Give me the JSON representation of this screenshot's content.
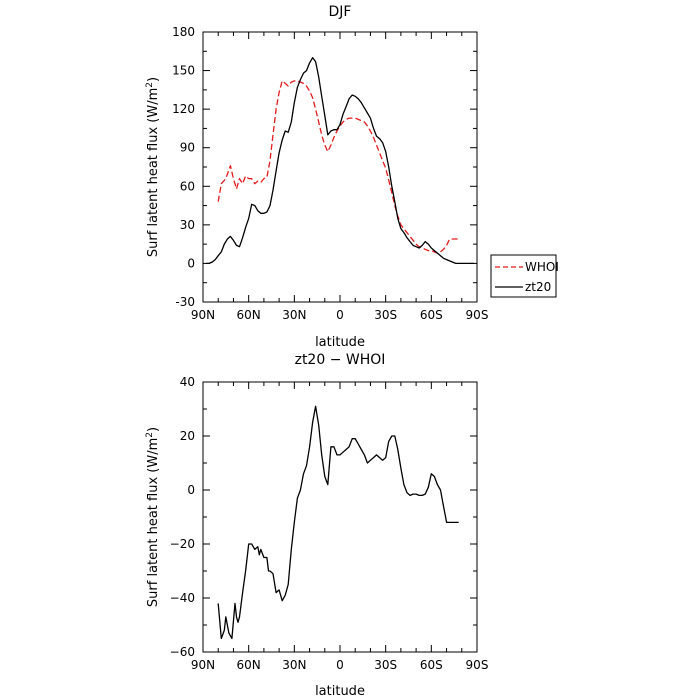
{
  "chart_data": [
    {
      "type": "line",
      "title": "DJF",
      "xlabel": "latitude",
      "ylabel": "Surf latent heat flux (W/m",
      "ylabel_sup": "2",
      "ylabel_close": ")",
      "xlim": [
        90,
        -90
      ],
      "ylim": [
        -30,
        180
      ],
      "xticks": [
        90,
        60,
        30,
        0,
        -30,
        -60,
        -90
      ],
      "xtick_labels": [
        "90N",
        "60N",
        "30N",
        "0",
        "30S",
        "60S",
        "90S"
      ],
      "yticks": [
        -30,
        0,
        30,
        60,
        90,
        120,
        150,
        180
      ],
      "ytick_labels": [
        "-30",
        "0",
        "30",
        "60",
        "90",
        "120",
        "150",
        "180"
      ],
      "legend_position": "outside-right",
      "series": [
        {
          "name": "WHOI",
          "color": "#e41a1c",
          "dash": "dashed",
          "x": [
            80,
            78,
            75,
            72,
            70,
            68,
            66,
            64,
            62,
            60,
            58,
            56,
            54,
            52,
            50,
            48,
            46,
            44,
            42,
            40,
            38,
            36,
            34,
            32,
            30,
            28,
            26,
            24,
            22,
            20,
            18,
            16,
            14,
            12,
            10,
            8,
            6,
            4,
            2,
            0,
            -2,
            -4,
            -6,
            -8,
            -10,
            -12,
            -14,
            -16,
            -18,
            -20,
            -22,
            -24,
            -26,
            -28,
            -30,
            -32,
            -34,
            -36,
            -38,
            -40,
            -42,
            -44,
            -46,
            -48,
            -50,
            -52,
            -54,
            -56,
            -58,
            -60,
            -62,
            -64,
            -66,
            -68,
            -70,
            -72,
            -74,
            -76,
            -78
          ],
          "values": [
            48,
            62,
            66,
            76,
            66,
            58,
            66,
            62,
            68,
            66,
            66,
            62,
            64,
            63,
            66,
            67,
            80,
            100,
            120,
            133,
            142,
            140,
            138,
            141,
            142,
            142,
            141,
            140,
            138,
            134,
            129,
            120,
            110,
            100,
            92,
            87,
            92,
            98,
            103,
            107,
            110,
            112,
            113,
            113,
            113,
            112,
            111,
            110,
            107,
            103,
            98,
            92,
            86,
            80,
            74,
            65,
            55,
            45,
            37,
            30,
            27,
            24,
            21,
            18,
            15,
            13,
            12,
            11,
            10,
            10,
            9,
            8,
            9,
            11,
            14,
            19,
            19,
            19,
            19
          ]
        },
        {
          "name": "zt20",
          "color": "#000000",
          "dash": "solid",
          "x": [
            88,
            86,
            84,
            82,
            80,
            78,
            76,
            74,
            72,
            70,
            68,
            66,
            64,
            62,
            60,
            58,
            56,
            54,
            52,
            50,
            48,
            46,
            44,
            42,
            40,
            38,
            36,
            34,
            32,
            30,
            28,
            26,
            24,
            22,
            20,
            18,
            16,
            14,
            12,
            10,
            8,
            6,
            4,
            2,
            0,
            -2,
            -4,
            -6,
            -8,
            -10,
            -12,
            -14,
            -16,
            -18,
            -20,
            -22,
            -24,
            -26,
            -28,
            -30,
            -32,
            -34,
            -36,
            -38,
            -40,
            -42,
            -44,
            -46,
            -48,
            -50,
            -52,
            -54,
            -56,
            -58,
            -60,
            -62,
            -64,
            -66,
            -68,
            -70,
            -72,
            -74,
            -76,
            -78,
            -80,
            -82,
            -84,
            -86,
            -88
          ],
          "values": [
            0,
            0,
            1,
            3,
            6,
            9,
            15,
            19,
            21,
            18,
            14,
            13,
            20,
            28,
            35,
            46,
            45,
            41,
            39,
            39,
            40,
            45,
            57,
            72,
            86,
            96,
            103,
            102,
            110,
            125,
            137,
            143,
            148,
            150,
            156,
            160,
            157,
            145,
            130,
            115,
            100,
            103,
            104,
            104,
            108,
            116,
            122,
            128,
            131,
            130,
            128,
            125,
            121,
            117,
            113,
            105,
            99,
            97,
            94,
            87,
            75,
            60,
            48,
            35,
            27,
            24,
            20,
            17,
            14,
            13,
            12,
            14,
            17,
            15,
            12,
            10,
            8,
            6,
            4,
            3,
            2,
            1,
            0,
            0,
            0,
            0,
            0,
            0,
            0
          ]
        }
      ]
    },
    {
      "type": "line",
      "title": "zt20 − WHOI",
      "xlabel": "latitude",
      "ylabel": "Surf latent heat flux (W/m",
      "ylabel_sup": "2",
      "ylabel_close": ")",
      "xlim": [
        90,
        -90
      ],
      "ylim": [
        -60,
        40
      ],
      "xticks": [
        90,
        60,
        30,
        0,
        -30,
        -60,
        -90
      ],
      "xtick_labels": [
        "90N",
        "60N",
        "30N",
        "0",
        "30S",
        "60S",
        "90S"
      ],
      "yticks": [
        -60,
        -40,
        -20,
        0,
        20,
        40
      ],
      "ytick_labels": [
        "−60",
        "−40",
        "−20",
        "0",
        "20",
        "40"
      ],
      "series": [
        {
          "color": "#000000",
          "dash": "solid",
          "x": [
            80,
            78,
            76,
            75,
            73,
            71,
            69,
            68,
            67,
            66,
            64,
            62,
            60,
            58,
            56,
            54,
            53,
            52,
            50,
            48,
            47,
            46,
            44,
            42,
            40,
            38,
            36,
            34,
            32,
            30,
            28,
            26,
            24,
            22,
            20,
            18,
            16,
            14,
            12,
            10,
            8,
            6,
            4,
            2,
            0,
            -2,
            -4,
            -6,
            -8,
            -10,
            -12,
            -14,
            -16,
            -18,
            -20,
            -22,
            -24,
            -26,
            -28,
            -30,
            -32,
            -34,
            -36,
            -38,
            -40,
            -42,
            -44,
            -46,
            -48,
            -50,
            -52,
            -54,
            -56,
            -58,
            -60,
            -62,
            -64,
            -66,
            -68,
            -70,
            -72,
            -74,
            -76,
            -78
          ],
          "values": [
            -42,
            -55,
            -52,
            -47,
            -53,
            -55,
            -42,
            -47,
            -49,
            -47,
            -38,
            -30,
            -20,
            -20,
            -22,
            -21,
            -24,
            -22,
            -25,
            -25,
            -30,
            -30,
            -31,
            -38,
            -37,
            -41,
            -39,
            -35,
            -22,
            -12,
            -3,
            0,
            6,
            9,
            16,
            25,
            31,
            24,
            13,
            5,
            2,
            16,
            16,
            13,
            13,
            14,
            15,
            16,
            19,
            19,
            17,
            15,
            13,
            10,
            11,
            12,
            13,
            12,
            11,
            12,
            18,
            20,
            20,
            15,
            8,
            2,
            -1,
            -2,
            -1.5,
            -1.5,
            -2,
            -2,
            -1.5,
            1,
            6,
            5,
            2,
            0,
            -6,
            -12,
            -12,
            -12,
            -12,
            -12
          ]
        }
      ]
    }
  ]
}
